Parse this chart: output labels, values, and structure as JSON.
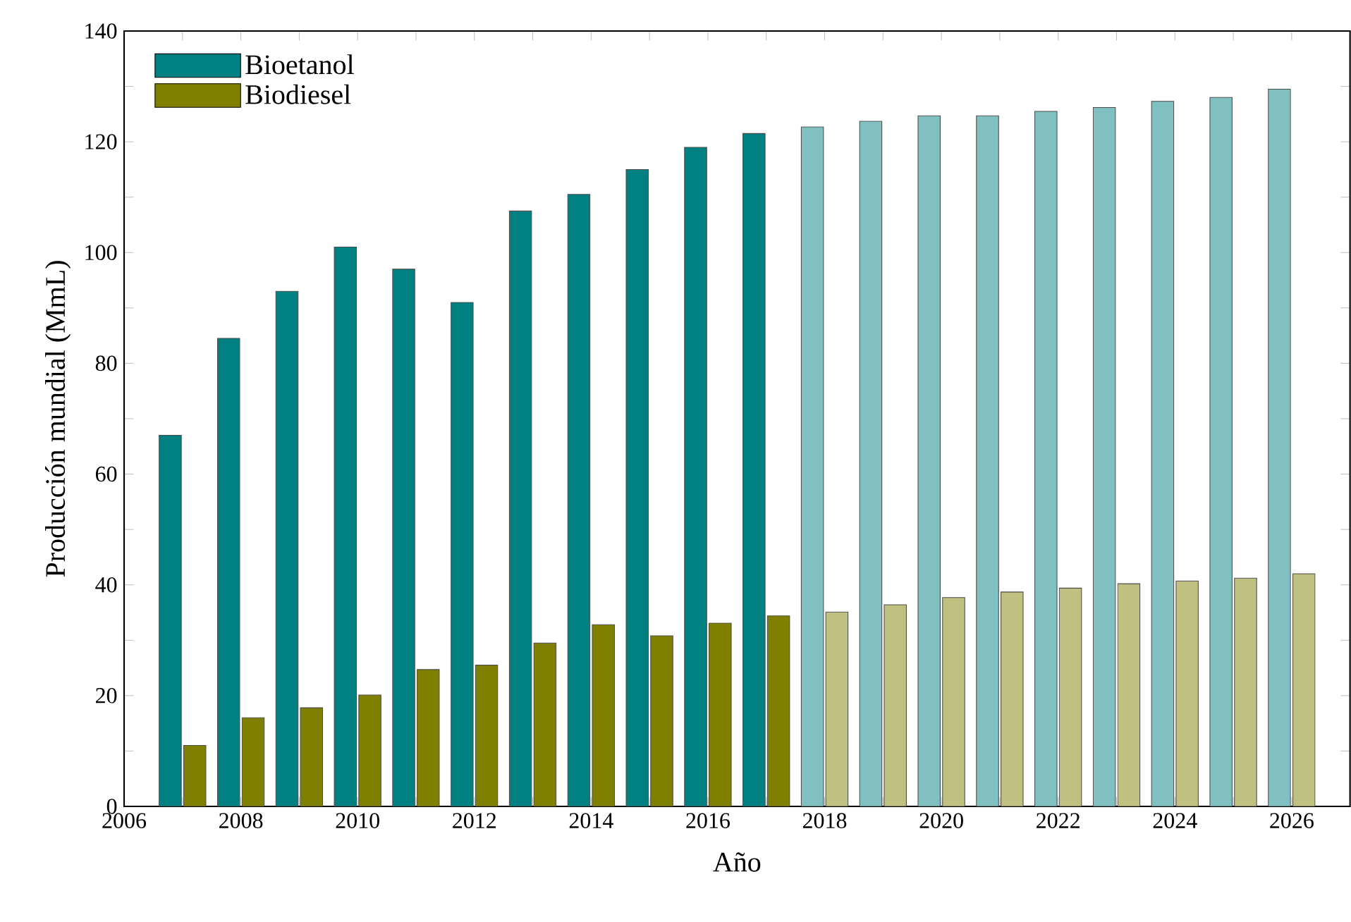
{
  "chart_data": {
    "type": "bar",
    "xlabel": "Año",
    "ylabel": "Producción mundial (MmL)",
    "x": [
      2007,
      2008,
      2009,
      2010,
      2011,
      2012,
      2013,
      2014,
      2015,
      2016,
      2017,
      2018,
      2019,
      2020,
      2021,
      2022,
      2023,
      2024,
      2025,
      2026
    ],
    "series": [
      {
        "name": "Bioetanol",
        "color": "#008080",
        "values": [
          67,
          84.5,
          93,
          101,
          97,
          91,
          107.5,
          110.5,
          115,
          119,
          121.5,
          122.7,
          123.7,
          124.7,
          124.7,
          125.5,
          126.2,
          127.3,
          128,
          129.5
        ],
        "colors": [
          "#008080",
          "#008080",
          "#008080",
          "#008080",
          "#008080",
          "#008080",
          "#008080",
          "#008080",
          "#008080",
          "#008080",
          "#008080",
          "#80c0c0",
          "#80c0c0",
          "#80c0c0",
          "#80c0c0",
          "#80c0c0",
          "#80c0c0",
          "#80c0c0",
          "#80c0c0",
          "#80c0c0"
        ]
      },
      {
        "name": "Biodiesel",
        "color": "#808000",
        "values": [
          11,
          16,
          17.8,
          20.1,
          24.7,
          25.5,
          29.5,
          32.8,
          30.8,
          33.1,
          34.4,
          35.1,
          36.4,
          37.7,
          38.7,
          39.4,
          40.2,
          40.7,
          41.2,
          42
        ],
        "colors": [
          "#808000",
          "#808000",
          "#808000",
          "#808000",
          "#808000",
          "#808000",
          "#808000",
          "#808000",
          "#808000",
          "#808000",
          "#808000",
          "#c0c080",
          "#c0c080",
          "#c0c080",
          "#c0c080",
          "#c0c080",
          "#c0c080",
          "#c0c080",
          "#c0c080",
          "#c0c080"
        ]
      }
    ],
    "xlim": [
      2006,
      2027
    ],
    "xticks": [
      2006,
      {
        "value": 2007,
        "label": null
      },
      2008,
      {
        "value": 2009,
        "label": null
      },
      2010,
      {
        "value": 2011,
        "label": null
      },
      2012,
      {
        "value": 2013,
        "label": null
      },
      2014,
      {
        "value": 2015,
        "label": null
      },
      2016,
      {
        "value": 2017,
        "label": null
      },
      2018,
      {
        "value": 2019,
        "label": null
      },
      2020,
      {
        "value": 2021,
        "label": null
      },
      2022,
      {
        "value": 2023,
        "label": null
      },
      2024,
      {
        "value": 2025,
        "label": null
      },
      2026
    ],
    "ylim": [
      0,
      140
    ],
    "yticks": [
      0,
      {
        "value": 10,
        "label": null
      },
      20,
      {
        "value": 30,
        "label": null
      },
      40,
      {
        "value": 50,
        "label": null
      },
      60,
      {
        "value": 70,
        "label": null
      },
      80,
      {
        "value": 90,
        "label": null
      },
      100,
      {
        "value": 110,
        "label": null
      },
      120,
      {
        "value": 130,
        "label": null
      },
      140
    ],
    "legend": "top left",
    "grid": false
  }
}
